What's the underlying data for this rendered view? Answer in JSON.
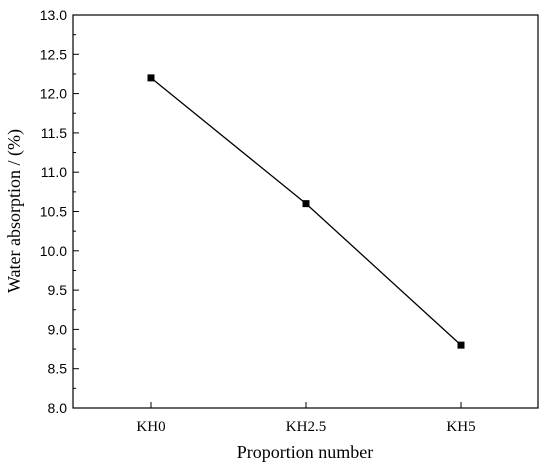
{
  "chart_data": {
    "type": "line",
    "categories": [
      "KH0",
      "KH2.5",
      "KH5"
    ],
    "series": [
      {
        "values": [
          12.2,
          10.6,
          8.8
        ]
      }
    ],
    "xlabel": "Proportion number",
    "ylabel": "Water absorption / (%)",
    "ylim": [
      8.0,
      13.0
    ],
    "yticks": [
      "8.0",
      "8.5",
      "9.0",
      "9.5",
      "10.0",
      "10.5",
      "11.0",
      "11.5",
      "12.0",
      "12.5",
      "13.0"
    ],
    "grid": false,
    "marker": "square",
    "colors": {
      "line": "#000000",
      "marker": "#000000"
    }
  }
}
